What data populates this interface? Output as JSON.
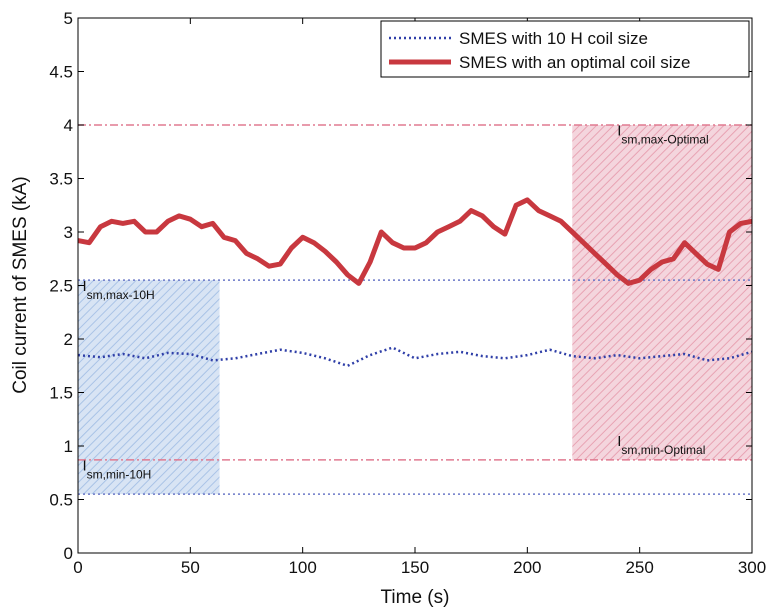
{
  "chart_data": {
    "type": "line",
    "xlabel": "Time (s)",
    "ylabel": "Coil current of SMES (kA)",
    "xlim": [
      0,
      300
    ],
    "ylim": [
      0,
      5
    ],
    "xticks": [
      0,
      50,
      100,
      150,
      200,
      250,
      300
    ],
    "yticks": [
      0,
      0.5,
      1,
      1.5,
      2,
      2.5,
      3,
      3.5,
      4,
      4.5,
      5
    ],
    "legend": "upper right",
    "series": [
      {
        "name": "SMES with 10 H coil size",
        "color": "#2f3fa8",
        "style": "dotted",
        "width": 2.5,
        "x": [
          0,
          10,
          20,
          30,
          40,
          50,
          60,
          70,
          80,
          90,
          100,
          110,
          120,
          130,
          140,
          150,
          160,
          170,
          180,
          190,
          200,
          210,
          220,
          230,
          240,
          250,
          260,
          270,
          280,
          290,
          300
        ],
        "values": [
          1.85,
          1.83,
          1.86,
          1.82,
          1.87,
          1.86,
          1.8,
          1.82,
          1.86,
          1.9,
          1.87,
          1.82,
          1.75,
          1.85,
          1.92,
          1.82,
          1.86,
          1.88,
          1.84,
          1.82,
          1.85,
          1.9,
          1.84,
          1.82,
          1.85,
          1.82,
          1.84,
          1.86,
          1.8,
          1.82,
          1.88
        ]
      },
      {
        "name": "SMES with an optimal coil size",
        "color": "#c8383f",
        "style": "solid",
        "width": 5,
        "x": [
          0,
          5,
          10,
          15,
          20,
          25,
          30,
          35,
          40,
          45,
          50,
          55,
          60,
          65,
          70,
          75,
          80,
          85,
          90,
          95,
          100,
          105,
          110,
          115,
          120,
          125,
          130,
          135,
          140,
          145,
          150,
          155,
          160,
          165,
          170,
          175,
          180,
          185,
          190,
          195,
          200,
          205,
          210,
          215,
          220,
          225,
          230,
          235,
          240,
          245,
          250,
          255,
          260,
          265,
          270,
          275,
          280,
          285,
          290,
          295,
          300
        ],
        "values": [
          2.92,
          2.9,
          3.05,
          3.1,
          3.08,
          3.1,
          3.0,
          3.0,
          3.1,
          3.15,
          3.12,
          3.05,
          3.08,
          2.95,
          2.92,
          2.8,
          2.75,
          2.68,
          2.7,
          2.85,
          2.95,
          2.9,
          2.82,
          2.72,
          2.6,
          2.52,
          2.72,
          3.0,
          2.9,
          2.85,
          2.85,
          2.9,
          3.0,
          3.05,
          3.1,
          3.2,
          3.15,
          3.05,
          2.98,
          3.25,
          3.3,
          3.2,
          3.15,
          3.1,
          3.0,
          2.9,
          2.8,
          2.7,
          2.6,
          2.52,
          2.55,
          2.65,
          2.72,
          2.75,
          2.9,
          2.8,
          2.7,
          2.65,
          3.0,
          3.08,
          3.1
        ]
      }
    ],
    "reference_lines": [
      {
        "value": 4,
        "color": "#e07a90",
        "style": "dashdot"
      },
      {
        "value": 2.55,
        "color": "#6a78c8",
        "style": "dotted"
      },
      {
        "value": 0.87,
        "color": "#e07a90",
        "style": "dashdot"
      },
      {
        "value": 0.55,
        "color": "#6a78c8",
        "style": "dotted"
      }
    ],
    "shaded_regions": [
      {
        "x": [
          0,
          63
        ],
        "y": [
          0.55,
          2.55
        ],
        "color": "#a9c3e6"
      },
      {
        "x": [
          220,
          300
        ],
        "y": [
          0.87,
          4
        ],
        "color": "#e8a3b3"
      }
    ],
    "annotations": [
      {
        "main": "I",
        "sub": "sm,max-10H",
        "x": 2,
        "y": 2.45
      },
      {
        "main": "I",
        "sub": "sm,min-10H",
        "x": 2,
        "y": 0.77
      },
      {
        "main": "I",
        "sub": "sm,max-Optimal",
        "x": 240,
        "y": 3.9
      },
      {
        "main": "I",
        "sub": "sm,min-Optimal",
        "x": 240,
        "y": 1.0
      }
    ]
  }
}
